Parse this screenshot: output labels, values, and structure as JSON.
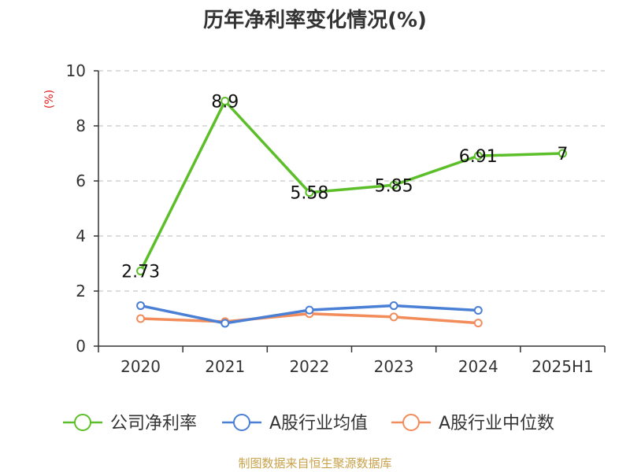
{
  "chart_data": {
    "type": "line",
    "title": "历年净利率变化情况(%)",
    "ylabel": "(%)",
    "xlabel": "",
    "categories": [
      "2020",
      "2021",
      "2022",
      "2023",
      "2024",
      "2025H1"
    ],
    "ylim": [
      0,
      10
    ],
    "yticks": [
      "0",
      "2",
      "4",
      "6",
      "8",
      "10"
    ],
    "grid": true,
    "legend_position": "bottom",
    "series": [
      {
        "name": "公司净利率",
        "color": "#5cbf2a",
        "values": [
          2.73,
          8.9,
          5.58,
          5.85,
          6.91,
          7
        ],
        "labels": [
          "2.73",
          "8.9",
          "5.58",
          "5.85",
          "6.91",
          "7"
        ]
      },
      {
        "name": "A股行业均值",
        "color": "#4a7fd6",
        "values": [
          1.47,
          0.83,
          1.31,
          1.47,
          1.3,
          null
        ]
      },
      {
        "name": "A股行业中位数",
        "color": "#f28c5a",
        "values": [
          1.0,
          0.89,
          1.18,
          1.06,
          0.84,
          null
        ]
      }
    ],
    "source": "制图数据来自恒生聚源数据库"
  }
}
